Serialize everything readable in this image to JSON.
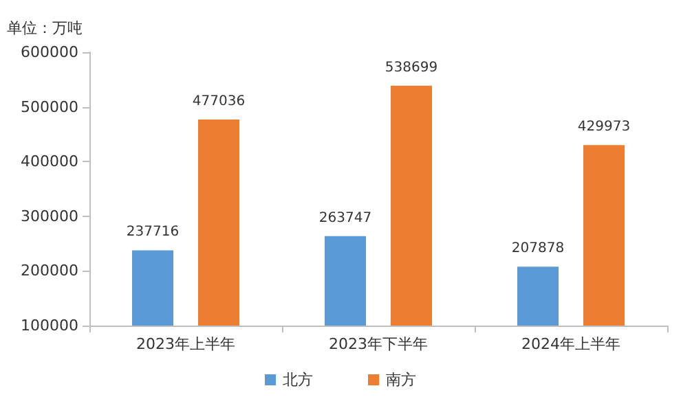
{
  "chart_data": {
    "type": "bar",
    "ylabel": "单位：万吨",
    "categories": [
      "2023年上半年",
      "2023年下半年",
      "2024年上半年"
    ],
    "series": [
      {
        "name": "北方",
        "color": "#5b9bd5",
        "values": [
          237716,
          263747,
          207878
        ]
      },
      {
        "name": "南方",
        "color": "#ed7d31",
        "values": [
          477036,
          538699,
          429973
        ]
      }
    ],
    "ylim": [
      100000,
      600000
    ],
    "yticks": [
      100000,
      200000,
      300000,
      400000,
      500000,
      600000
    ],
    "data_labels": true,
    "legend": "bottom",
    "grid": false
  }
}
